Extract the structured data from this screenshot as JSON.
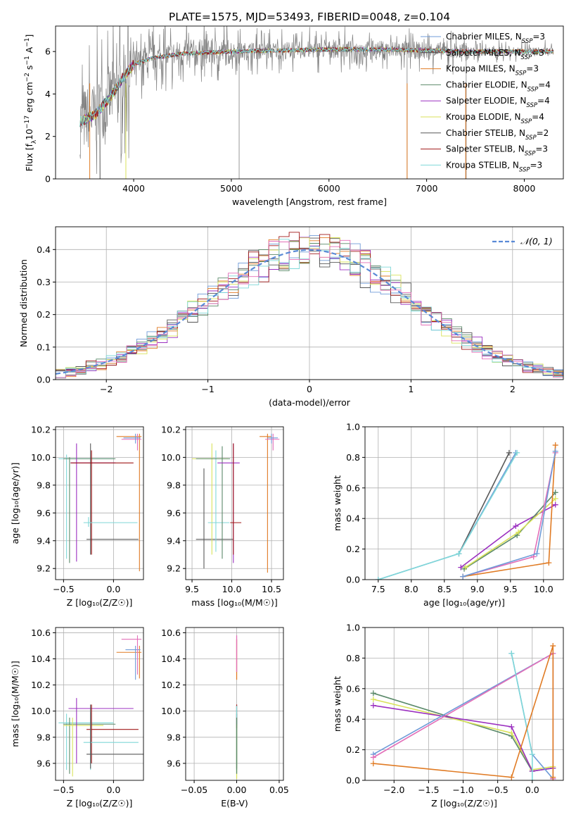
{
  "title": "PLATE=1575, MJD=53493, FIBERID=0048, z=0.104",
  "colors": {
    "chabrier_miles": "#6f9bd8",
    "salpeter_miles": "#555555",
    "kroupa_miles": "#e07b24",
    "chabrier_elodie": "#5b8a6a",
    "salpeter_elodie": "#9b30c0",
    "kroupa_elodie": "#d9e25a",
    "chabrier_stelib": "#595959",
    "salpeter_stelib": "#a01818",
    "kroupa_stelib": "#7fd8d8",
    "pink": "#e36fb8",
    "normal": "#5a8ad6"
  },
  "chart_data": [
    {
      "id": "spectrum",
      "type": "line",
      "xlabel": "wavelength [Angstrom, rest frame]",
      "xticks": [
        "4000",
        "5000",
        "6000",
        "7000",
        "8000"
      ],
      "yticks": [
        "0",
        "2",
        "4",
        "6"
      ],
      "xlim": [
        3200,
        8400
      ],
      "ylim": [
        0,
        7.2
      ],
      "legend": [
        {
          "label": "Chabrier MILES, N",
          "sub": "SSP",
          "tail": "=3",
          "color": "#6f9bd8"
        },
        {
          "label": "Salpeter MILES, N",
          "sub": "SSP",
          "tail": "=3",
          "color": "#555555"
        },
        {
          "label": "Kroupa MILES, N",
          "sub": "SSP",
          "tail": "=3",
          "color": "#e07b24"
        },
        {
          "label": "Chabrier ELODIE, N",
          "sub": "SSP",
          "tail": "=4",
          "color": "#5b8a6a"
        },
        {
          "label": "Salpeter ELODIE, N",
          "sub": "SSP",
          "tail": "=4",
          "color": "#9b30c0"
        },
        {
          "label": "Kroupa ELODIE, N",
          "sub": "SSP",
          "tail": "=4",
          "color": "#d9e25a"
        },
        {
          "label": "Chabrier STELIB, N",
          "sub": "SSP",
          "tail": "=2",
          "color": "#595959"
        },
        {
          "label": "Salpeter STELIB, N",
          "sub": "SSP",
          "tail": "=3",
          "color": "#a01818"
        },
        {
          "label": "Kroupa STELIB, N",
          "sub": "SSP",
          "tail": "=3",
          "color": "#7fd8d8"
        }
      ],
      "continuum": [
        [
          3450,
          2.7
        ],
        [
          3600,
          3.0
        ],
        [
          3750,
          3.8
        ],
        [
          3900,
          4.8
        ],
        [
          4000,
          5.4
        ],
        [
          4200,
          5.7
        ],
        [
          4500,
          5.9
        ],
        [
          5000,
          6.0
        ],
        [
          5500,
          6.05
        ],
        [
          6000,
          6.1
        ],
        [
          6500,
          6.1
        ],
        [
          7000,
          6.05
        ],
        [
          7400,
          6.0
        ],
        [
          8300,
          6.0
        ]
      ]
    },
    {
      "id": "residuals",
      "type": "step",
      "xlabel": "(data-model)/error",
      "ylabel": "Normed distribution",
      "xticks": [
        "−2",
        "−1",
        "0",
        "1",
        "2"
      ],
      "yticks": [
        "0.0",
        "0.1",
        "0.2",
        "0.3",
        "0.4"
      ],
      "xlim": [
        -2.5,
        2.5
      ],
      "ylim": [
        0,
        0.47
      ],
      "legend": "𝒩(0, 1)"
    },
    {
      "id": "age-vs-z",
      "type": "errorbar",
      "xlabel": "Z [log₁₀(Z/Z☉)]",
      "ylabel": "age  [log₁₀(age/yr)]",
      "xticks": [
        "−0.5",
        "0.0"
      ],
      "yticks": [
        "9.2",
        "9.4",
        "9.6",
        "9.8",
        "10.0",
        "10.2"
      ],
      "xlim": [
        -0.58,
        0.3
      ],
      "ylim": [
        9.12,
        10.22
      ]
    },
    {
      "id": "age-vs-mass",
      "type": "errorbar",
      "xlabel": "mass [log₁₀(M/M☉)]",
      "ylabel": "",
      "xticks": [
        "9.5",
        "10.0",
        "10.5"
      ],
      "yticks": [
        "9.2",
        "9.4",
        "9.6",
        "9.8",
        "10.0",
        "10.2"
      ],
      "xlim": [
        9.42,
        10.65
      ],
      "ylim": [
        9.12,
        10.22
      ]
    },
    {
      "id": "massweight-vs-age",
      "type": "line",
      "xlabel": "age  [log₁₀(age/yr)]",
      "ylabel": "mass weight",
      "xticks": [
        "7.5",
        "8.0",
        "8.5",
        "9.0",
        "9.5",
        "10.0"
      ],
      "yticks": [
        "0.0",
        "0.2",
        "0.4",
        "0.6",
        "0.8",
        "1.0"
      ],
      "xlim": [
        7.3,
        10.3
      ],
      "ylim": [
        0,
        1
      ],
      "series": [
        {
          "color": "#595959",
          "x": [
            8.72,
            9.48
          ],
          "y": [
            0.17,
            0.83
          ]
        },
        {
          "color": "#6f9bd8",
          "x": [
            7.5,
            8.72,
            9.58
          ],
          "y": [
            0.0,
            0.17,
            0.83
          ]
        },
        {
          "color": "#7fd8d8",
          "x": [
            7.5,
            8.72,
            9.6
          ],
          "y": [
            0.0,
            0.17,
            0.83
          ]
        },
        {
          "color": "#9b30c0",
          "x": [
            8.75,
            9.58,
            10.18
          ],
          "y": [
            0.08,
            0.35,
            0.49
          ]
        },
        {
          "color": "#5b8a6a",
          "x": [
            8.8,
            9.6,
            10.18
          ],
          "y": [
            0.07,
            0.29,
            0.57
          ]
        },
        {
          "color": "#d9e25a",
          "x": [
            8.82,
            9.62,
            10.18
          ],
          "y": [
            0.08,
            0.31,
            0.53
          ]
        },
        {
          "color": "#e36fb8",
          "x": [
            8.78,
            9.85,
            10.18
          ],
          "y": [
            0.02,
            0.15,
            0.83
          ]
        },
        {
          "color": "#e07b24",
          "x": [
            8.78,
            10.08,
            10.18
          ],
          "y": [
            0.02,
            0.11,
            0.88
          ]
        },
        {
          "color": "#6f9bd8",
          "x": [
            8.78,
            9.9,
            10.18
          ],
          "y": [
            0.02,
            0.17,
            0.84
          ]
        }
      ]
    },
    {
      "id": "mass-vs-z",
      "type": "errorbar",
      "xlabel": "Z [log₁₀(Z/Z☉)]",
      "ylabel": "mass [log₁₀(M/M☉)]",
      "xticks": [
        "−0.5",
        "0.0"
      ],
      "yticks": [
        "9.6",
        "9.8",
        "10.0",
        "10.2",
        "10.4",
        "10.6"
      ],
      "xlim": [
        -0.58,
        0.3
      ],
      "ylim": [
        9.47,
        10.64
      ]
    },
    {
      "id": "mass-vs-ebv",
      "type": "errorbar",
      "xlabel": "E(B-V)",
      "ylabel": "",
      "xticks": [
        "−0.05",
        "0.00",
        "0.05"
      ],
      "yticks": [
        "9.6",
        "9.8",
        "10.0",
        "10.2",
        "10.4",
        "10.6"
      ],
      "xlim": [
        -0.06,
        0.055
      ],
      "ylim": [
        9.47,
        10.64
      ]
    },
    {
      "id": "massweight-vs-z",
      "type": "line",
      "xlabel": "Z [log₁₀(Z/Z☉)]",
      "ylabel": "mass weight",
      "xticks": [
        "−2.0",
        "−1.5",
        "−1.0",
        "−0.5",
        "0.0"
      ],
      "yticks": [
        "0.0",
        "0.2",
        "0.4",
        "0.6",
        "0.8",
        "1.0"
      ],
      "xlim": [
        -2.42,
        0.45
      ],
      "ylim": [
        0,
        1
      ],
      "series": [
        {
          "color": "#5b8a6a",
          "x": [
            -2.3,
            -0.3,
            0.0,
            0.3
          ],
          "y": [
            0.57,
            0.29,
            0.06,
            0.08
          ]
        },
        {
          "color": "#d9e25a",
          "x": [
            -2.3,
            -0.3,
            0.0,
            0.3
          ],
          "y": [
            0.53,
            0.31,
            0.07,
            0.09
          ]
        },
        {
          "color": "#9b30c0",
          "x": [
            -2.3,
            -0.3,
            0.0,
            0.3
          ],
          "y": [
            0.49,
            0.35,
            0.06,
            0.08
          ]
        },
        {
          "color": "#6f9bd8",
          "x": [
            -2.3,
            0.3,
            0.3,
            0.0,
            -0.3
          ],
          "y": [
            0.17,
            0.83,
            0.01,
            0.17,
            0.83
          ]
        },
        {
          "color": "#e36fb8",
          "x": [
            -2.3,
            0.3,
            0.3
          ],
          "y": [
            0.15,
            0.83,
            0.01
          ]
        },
        {
          "color": "#7fd8d8",
          "x": [
            -0.3,
            0.0,
            0.0
          ],
          "y": [
            0.83,
            0.17,
            0.0
          ]
        },
        {
          "color": "#e07b24",
          "x": [
            -2.3,
            -0.3,
            0.3,
            0.3
          ],
          "y": [
            0.11,
            0.02,
            0.88,
            0.02
          ]
        }
      ]
    }
  ]
}
